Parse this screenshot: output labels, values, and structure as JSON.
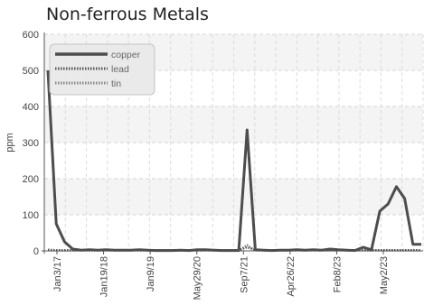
{
  "chart_data": {
    "type": "line",
    "title": "Non-ferrous Metals",
    "ylabel": "ppm",
    "xlabel": "",
    "ylim": [
      0,
      600
    ],
    "y_ticks": [
      0,
      100,
      200,
      300,
      400,
      500,
      600
    ],
    "x_tick_labels": [
      "Jan3/17",
      "Jan19/18",
      "Jan9/19",
      "May29/20",
      "Sep7/21",
      "Apr26/22",
      "Feb8/23",
      "May2/23"
    ],
    "grid": true,
    "legend_position": "top-left",
    "series": [
      {
        "name": "copper",
        "color": "#4d4d4d",
        "style": "solid",
        "values": [
          500,
          75,
          25,
          5,
          2,
          3,
          2,
          3,
          2,
          2,
          2,
          3,
          2,
          1,
          1,
          1,
          2,
          1,
          3,
          3,
          2,
          1,
          1,
          1,
          335,
          3,
          2,
          1,
          2,
          2,
          3,
          2,
          3,
          2,
          5,
          3,
          2,
          1,
          10,
          3,
          110,
          130,
          178,
          145,
          18,
          18
        ]
      },
      {
        "name": "lead",
        "color": "#555555",
        "style": "dotted",
        "values": [
          3,
          2,
          2,
          2,
          2,
          2,
          2,
          2,
          2,
          2,
          2,
          2,
          2,
          2,
          2,
          2,
          2,
          2,
          2,
          2,
          2,
          2,
          2,
          2,
          10,
          2,
          2,
          2,
          2,
          2,
          2,
          2,
          2,
          2,
          2,
          2,
          2,
          2,
          2,
          2,
          2,
          2,
          2,
          2,
          2,
          2
        ]
      },
      {
        "name": "tin",
        "color": "#888888",
        "style": "dotted",
        "values": [
          1,
          1,
          1,
          1,
          1,
          1,
          1,
          1,
          1,
          1,
          1,
          1,
          1,
          1,
          1,
          1,
          1,
          1,
          1,
          1,
          1,
          1,
          1,
          1,
          16,
          1,
          1,
          1,
          1,
          1,
          1,
          1,
          1,
          1,
          1,
          1,
          1,
          1,
          1,
          1,
          1,
          1,
          1,
          1,
          1,
          1
        ]
      }
    ]
  }
}
